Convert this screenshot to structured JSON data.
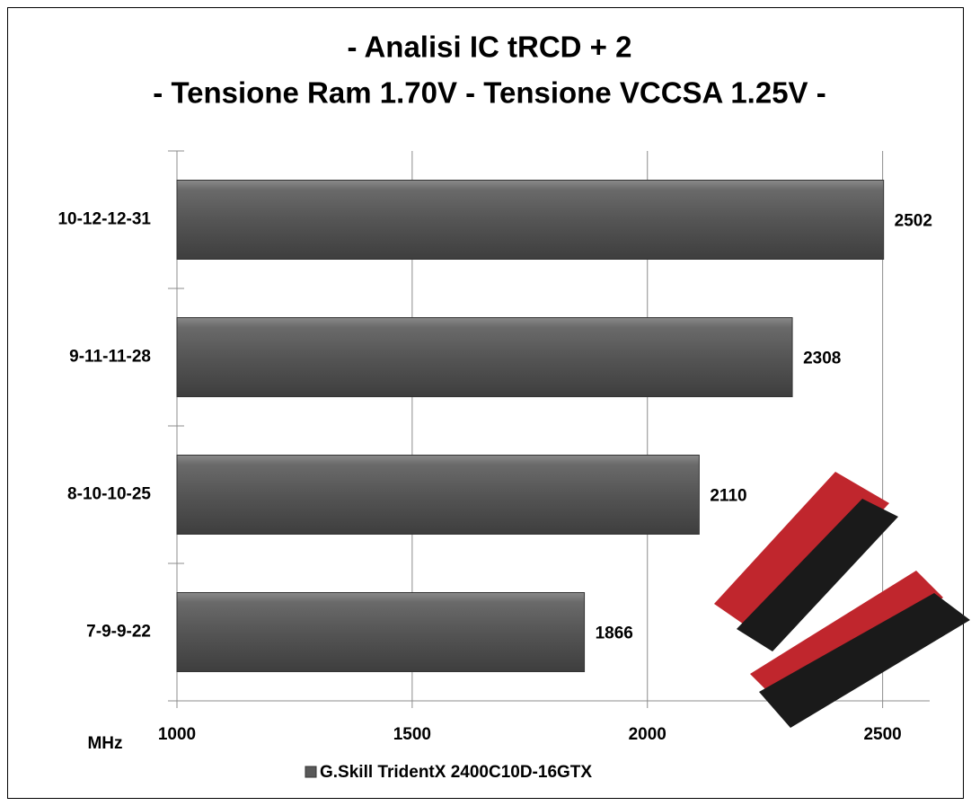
{
  "chart_data": {
    "type": "bar",
    "orientation": "horizontal",
    "title": "- Analisi IC  tRCD + 2",
    "subtitle": "- Tensione Ram 1.70V - Tensione VCCSA 1.25V -",
    "x_label": "MHz",
    "categories": [
      "10-12-12-31",
      "9-11-11-28",
      "8-10-10-25",
      "7-9-9-22"
    ],
    "series": [
      {
        "name": "G.Skill TridentX 2400C10D-16GTX",
        "color": "#595959",
        "values": [
          2502,
          2308,
          2110,
          1866
        ]
      }
    ],
    "xlim": [
      1000,
      2600
    ],
    "xticks": [
      1000,
      1500,
      2000,
      2500
    ],
    "grid": true,
    "legend": "bottom"
  }
}
